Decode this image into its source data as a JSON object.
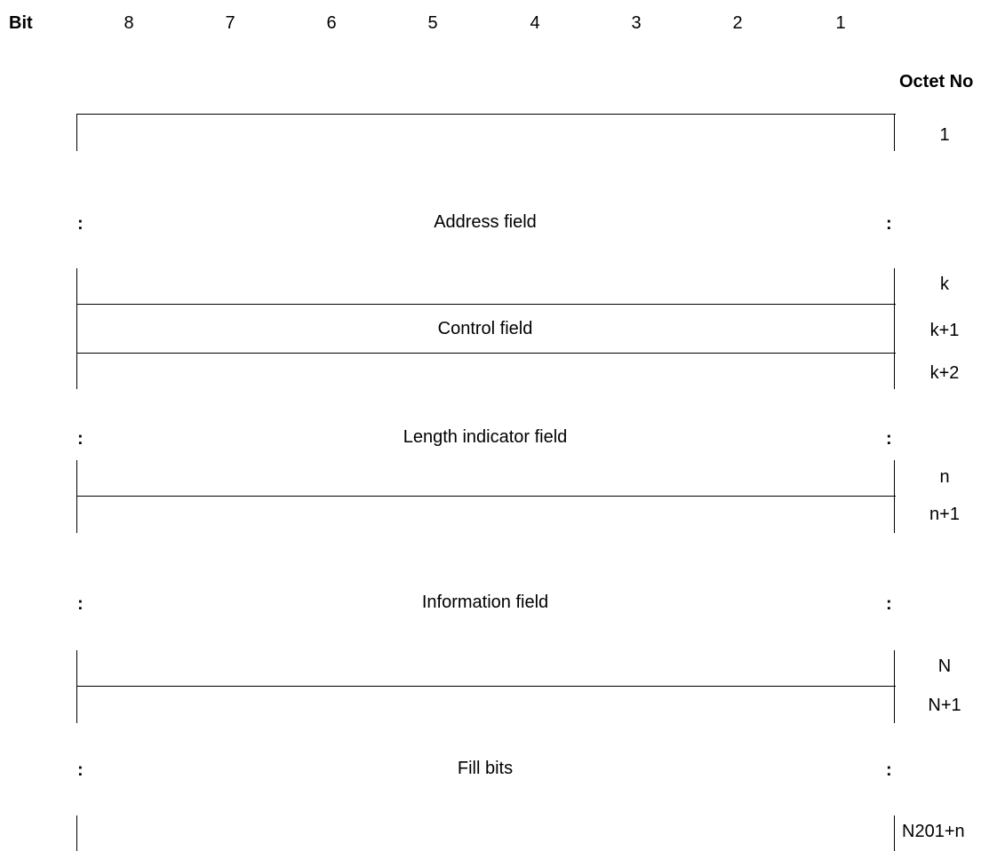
{
  "header": {
    "bit_label": "Bit",
    "bit_numbers": [
      "8",
      "7",
      "6",
      "5",
      "4",
      "3",
      "2",
      "1"
    ],
    "octet_label": "Octet No"
  },
  "fields": {
    "address": "Address field",
    "control": "Control field",
    "length_indicator": "Length indicator field",
    "information": "Information field",
    "fill_bits": "Fill bits"
  },
  "ellipsis": ":",
  "octets": {
    "first": "1",
    "k": "k",
    "k_plus_1": "k+1",
    "k_plus_2": "k+2",
    "n": "n",
    "n_plus_1": "n+1",
    "N": "N",
    "N_plus_1": "N+1",
    "last": "N201+n"
  }
}
